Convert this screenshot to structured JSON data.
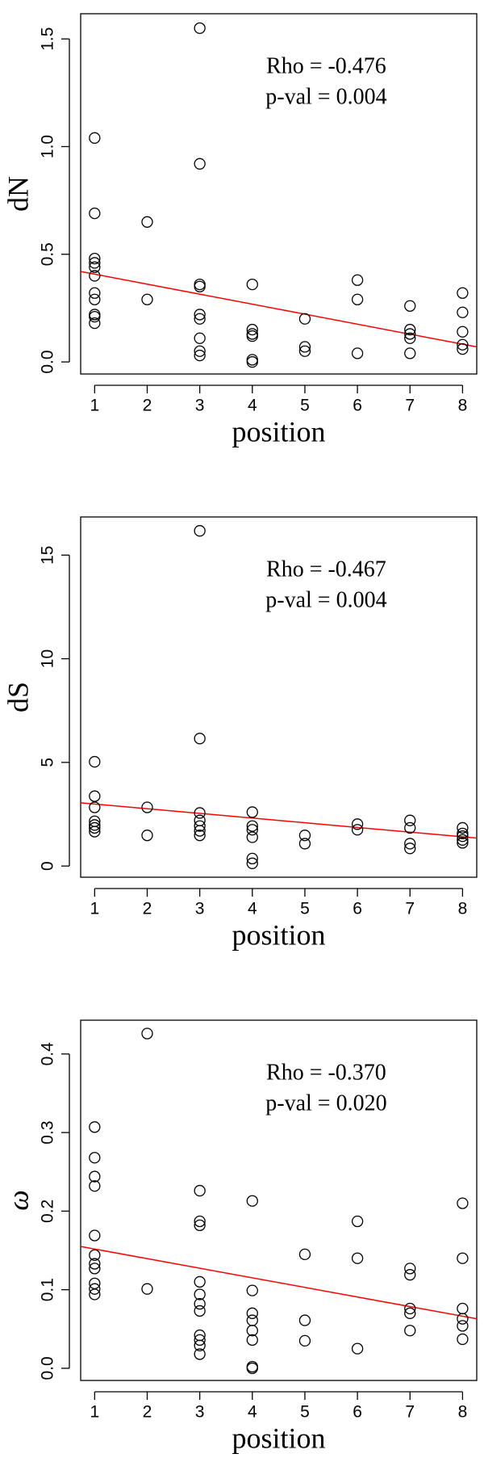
{
  "chart_data": [
    {
      "type": "scatter",
      "xlabel": "position",
      "ylabel": "dN",
      "annotations": [
        "Rho = -0.476",
        "p-val = 0.004"
      ],
      "x": [
        1,
        1,
        1,
        1,
        1,
        1,
        1,
        1,
        1,
        1,
        1,
        2,
        2,
        3,
        3,
        3,
        3,
        3,
        3,
        3,
        3,
        3,
        4,
        4,
        4,
        4,
        4,
        4,
        5,
        5,
        5,
        6,
        6,
        6,
        7,
        7,
        7,
        7,
        7,
        8,
        8,
        8,
        8,
        8
      ],
      "y": [
        1.04,
        0.69,
        0.48,
        0.46,
        0.44,
        0.4,
        0.32,
        0.29,
        0.22,
        0.21,
        0.18,
        0.65,
        0.29,
        1.55,
        0.92,
        0.36,
        0.35,
        0.22,
        0.2,
        0.11,
        0.05,
        0.03,
        0.36,
        0.15,
        0.13,
        0.12,
        0.01,
        0.0,
        0.2,
        0.07,
        0.05,
        0.38,
        0.29,
        0.04,
        0.26,
        0.15,
        0.13,
        0.11,
        0.04,
        0.32,
        0.23,
        0.14,
        0.08,
        0.06
      ],
      "color": "#000000",
      "trend_line": {
        "x": [
          0.734,
          8.27
        ],
        "y": [
          0.42,
          0.07
        ],
        "color": "#ff0000"
      },
      "xlim": [
        0.734,
        8.27
      ],
      "ylim": [
        -0.056,
        1.617
      ],
      "xticks": [
        1,
        2,
        3,
        4,
        5,
        6,
        7,
        8
      ],
      "yticks": [
        {
          "value": 0,
          "label": "0.0"
        },
        0.5,
        {
          "value": 1,
          "label": "1.0"
        },
        1.5
      ]
    },
    {
      "type": "scatter",
      "xlabel": "position",
      "ylabel": "dS",
      "annotations": [
        "Rho = -0.467",
        "p-val = 0.004"
      ],
      "x": [
        1,
        1,
        1,
        1,
        1,
        1,
        1,
        2,
        2,
        3,
        3,
        3,
        3,
        3,
        3,
        3,
        4,
        4,
        4,
        4,
        4,
        4,
        5,
        5,
        6,
        6,
        7,
        7,
        7,
        7,
        8,
        8,
        8,
        8,
        8
      ],
      "y": [
        5.03,
        3.37,
        2.83,
        2.16,
        1.98,
        1.84,
        1.66,
        2.83,
        1.48,
        16.17,
        6.15,
        2.56,
        2.2,
        1.93,
        1.7,
        1.48,
        2.6,
        1.93,
        1.75,
        1.39,
        0.36,
        0.13,
        1.48,
        1.08,
        2.02,
        1.75,
        2.2,
        1.84,
        1.08,
        0.85,
        1.84,
        1.57,
        1.44,
        1.26,
        1.12
      ],
      "color": "#000000",
      "trend_line": {
        "x": [
          0.734,
          8.27
        ],
        "y": [
          3.05,
          1.35
        ],
        "color": "#ff0000"
      },
      "xlim": [
        0.734,
        8.27
      ],
      "ylim": [
        -0.54,
        16.84
      ],
      "xticks": [
        1,
        2,
        3,
        4,
        5,
        6,
        7,
        8
      ],
      "yticks": [
        0,
        5,
        10,
        15
      ]
    },
    {
      "type": "scatter",
      "xlabel": "position",
      "ylabel": "ω",
      "annotations": [
        "Rho = -0.370",
        "p-val = 0.020"
      ],
      "x": [
        1,
        1,
        1,
        1,
        1,
        1,
        1,
        1,
        1,
        1,
        1,
        2,
        2,
        3,
        3,
        3,
        3,
        3,
        3,
        3,
        3,
        3,
        3,
        3,
        4,
        4,
        4,
        4,
        4,
        4,
        4,
        4,
        5,
        5,
        5,
        6,
        6,
        6,
        7,
        7,
        7,
        7,
        7,
        8,
        8,
        8,
        8,
        8,
        8
      ],
      "y": [
        0.307,
        0.268,
        0.244,
        0.232,
        0.169,
        0.144,
        0.133,
        0.127,
        0.108,
        0.101,
        0.094,
        0.426,
        0.101,
        0.226,
        0.187,
        0.182,
        0.11,
        0.094,
        0.082,
        0.073,
        0.042,
        0.036,
        0.029,
        0.018,
        0.213,
        0.099,
        0.07,
        0.061,
        0.048,
        0.036,
        0.002,
        0.0,
        0.145,
        0.061,
        0.035,
        0.187,
        0.14,
        0.025,
        0.127,
        0.119,
        0.076,
        0.07,
        0.048,
        0.21,
        0.14,
        0.076,
        0.063,
        0.054,
        0.037
      ],
      "color": "#000000",
      "trend_line": {
        "x": [
          0.734,
          8.27
        ],
        "y": [
          0.155,
          0.063
        ],
        "color": "#ff0000"
      },
      "xlim": [
        0.734,
        8.27
      ],
      "ylim": [
        -0.0155,
        0.443
      ],
      "xticks": [
        1,
        2,
        3,
        4,
        5,
        6,
        7,
        8
      ],
      "yticks": [
        {
          "value": 0,
          "label": "0.0"
        },
        0.1,
        0.2,
        0.3,
        0.4
      ]
    }
  ]
}
